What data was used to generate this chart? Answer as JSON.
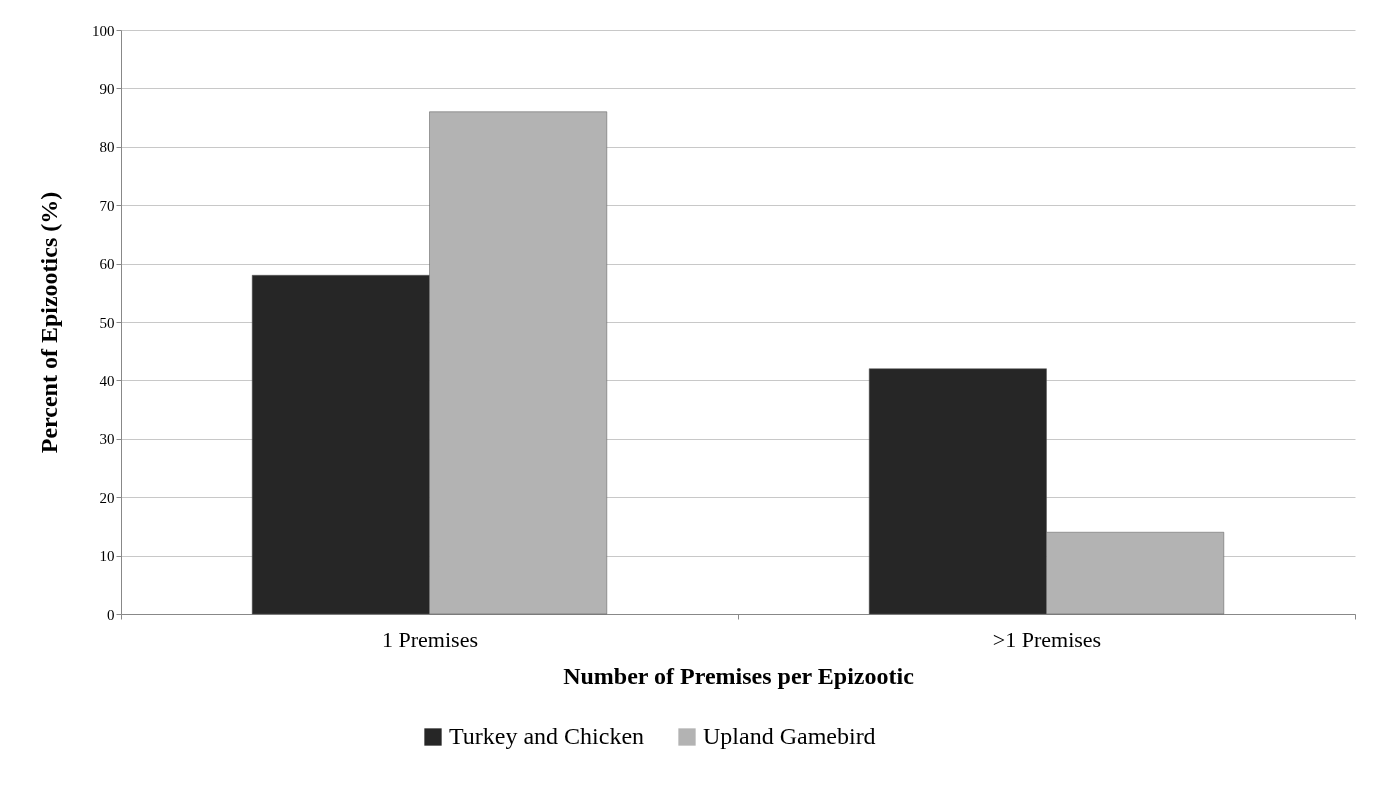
{
  "chart_data": {
    "type": "bar",
    "xlabel": "Number of Premises per Epizootic",
    "ylabel": "Percent of Epizootics  (%)",
    "categories": [
      "1 Premises",
      ">1 Premises"
    ],
    "series": [
      {
        "name": "Turkey and Chicken",
        "color": "#262626",
        "values": [
          58,
          42
        ]
      },
      {
        "name": "Upland Gamebird",
        "color": "#b3b3b3",
        "values": [
          86,
          14
        ]
      }
    ],
    "ylim": [
      0,
      100
    ],
    "yticks": [
      0,
      10,
      20,
      30,
      40,
      50,
      60,
      70,
      80,
      90,
      100
    ],
    "grid": "y",
    "legend": "bottom"
  }
}
